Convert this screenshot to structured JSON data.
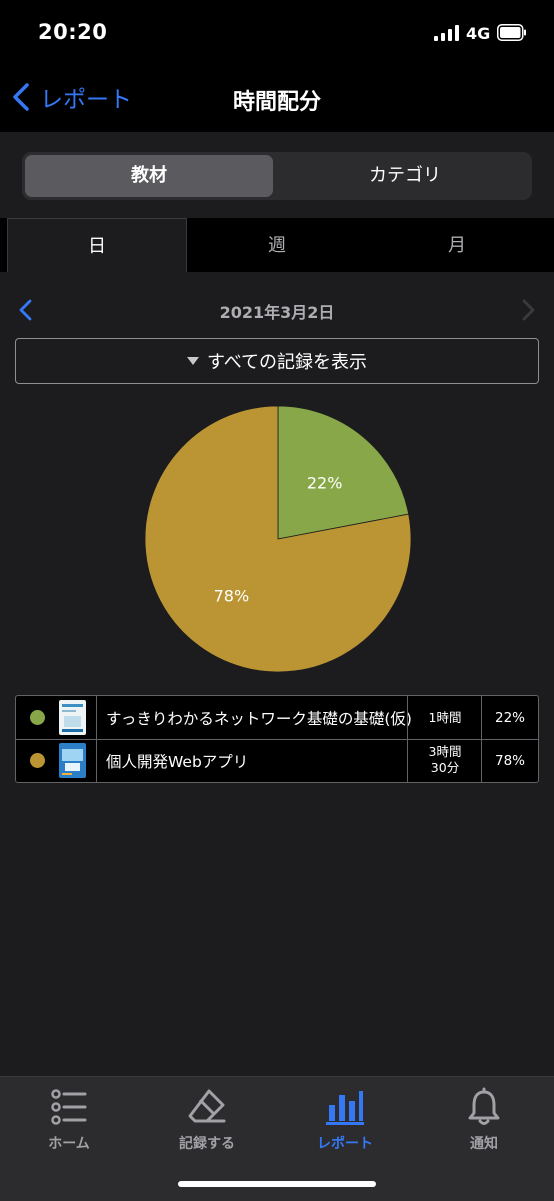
{
  "status_bar": {
    "time": "20:20",
    "network": "4G"
  },
  "nav": {
    "back_label": "レポート",
    "title": "時間配分"
  },
  "segment": {
    "items": [
      "教材",
      "カテゴリ"
    ],
    "selected_index": 0
  },
  "period_tabs": {
    "items": [
      "日",
      "週",
      "月"
    ],
    "selected_index": 0
  },
  "date": {
    "label": "2021年3月2日"
  },
  "filter": {
    "label": "すべての記録を表示"
  },
  "chart_data": {
    "type": "pie",
    "slices": [
      {
        "name": "すっきりわかるネットワーク基礎の基礎(仮)",
        "value": 22,
        "label": "22%",
        "color": "#88a748"
      },
      {
        "name": "個人開発Webアプリ",
        "value": 78,
        "label": "78%",
        "color": "#bb9434"
      }
    ]
  },
  "legend": {
    "rows": [
      {
        "name": "すっきりわかるネットワーク基礎の基礎(仮)",
        "duration": "1時間",
        "percent": "22%",
        "color": "#88a748"
      },
      {
        "name": "個人開発Webアプリ",
        "duration": "3時間\n30分",
        "percent": "78%",
        "color": "#bb9434"
      }
    ]
  },
  "tab_bar": {
    "items": [
      {
        "label": "ホーム",
        "icon": "list-icon"
      },
      {
        "label": "記録する",
        "icon": "eraser-icon"
      },
      {
        "label": "レポート",
        "icon": "bar-chart-icon"
      },
      {
        "label": "通知",
        "icon": "bell-icon"
      }
    ],
    "selected_index": 2
  }
}
